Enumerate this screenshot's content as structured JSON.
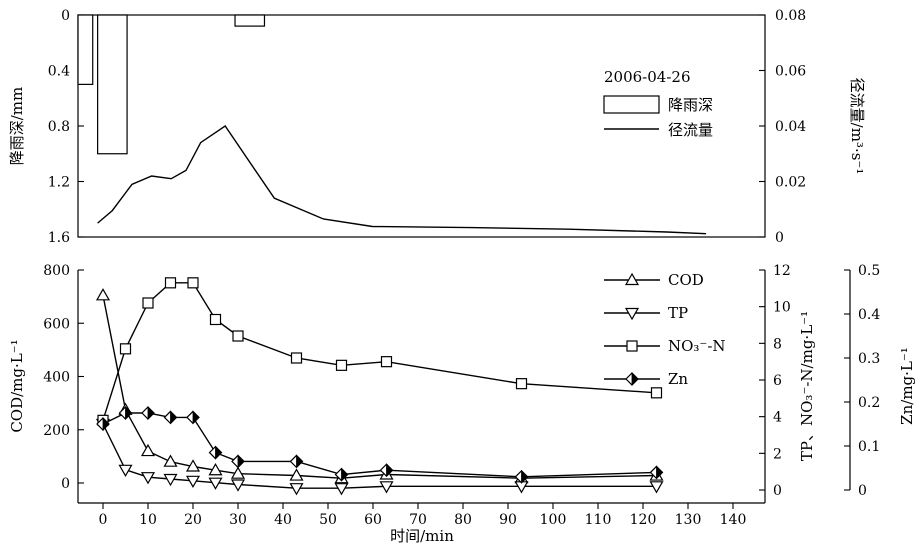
{
  "chart_data": [
    {
      "type": "bar",
      "legend_title": "2006-04-26",
      "left_axis": {
        "label": "降雨深/mm",
        "ticks": [
          "0",
          "0.4",
          "0.8",
          "1.2",
          "1.6"
        ],
        "lim": [
          0,
          1.6
        ],
        "inverted": true
      },
      "right_axis": {
        "label": "径流量/m³·s⁻¹",
        "ticks": [
          "0.08",
          "0.06",
          "0.04",
          "0.02",
          "0"
        ],
        "lim": [
          0,
          0.08
        ]
      },
      "rain": {
        "name": "降雨深",
        "bars": [
          {
            "start": 0,
            "end": 3,
            "depth": 0.5
          },
          {
            "start": 4,
            "end": 10,
            "depth": 1.0
          },
          {
            "start": 32,
            "end": 38,
            "depth": 0.08
          }
        ]
      },
      "runoff": {
        "name": "径流量",
        "x": [
          4,
          7,
          11,
          15,
          19,
          22,
          25,
          30,
          40,
          50,
          60,
          80,
          100,
          120,
          128
        ],
        "y": [
          0.005,
          0.0095,
          0.019,
          0.022,
          0.021,
          0.024,
          0.034,
          0.04,
          0.014,
          0.0065,
          0.0038,
          0.0034,
          0.0028,
          0.0018,
          0.0012
        ]
      },
      "legend_placement": "right"
    },
    {
      "type": "line",
      "xlabel": "时间/min",
      "xlim": [
        0,
        140
      ],
      "x_ticks": [
        "0",
        "10",
        "20",
        "30",
        "40",
        "50",
        "60",
        "70",
        "80",
        "90",
        "100",
        "110",
        "120",
        "130",
        "140"
      ],
      "left_axis": {
        "label": "COD/mg·L⁻¹",
        "ticks": [
          "0",
          "200",
          "400",
          "600",
          "800"
        ],
        "lim": [
          0,
          800
        ]
      },
      "right_axis": {
        "label": "TP、NO₃⁻-N/mg·L⁻¹",
        "ticks": [
          "0",
          "2",
          "4",
          "6",
          "8",
          "10",
          "12"
        ],
        "lim": [
          0,
          12
        ]
      },
      "zn_axis": {
        "label": "Zn/mg·L⁻¹",
        "ticks": [
          "0",
          "0.1",
          "0.2",
          "0.3",
          "0.4",
          "0.5"
        ],
        "lim": [
          0,
          0.5
        ]
      },
      "legend_placement": "top-right",
      "series": [
        {
          "name": "COD",
          "axis": "left",
          "marker": "triangle-up",
          "x": [
            0,
            5,
            10,
            15,
            20,
            25,
            30,
            43,
            53,
            63,
            93,
            123
          ],
          "y": [
            705,
            275,
            120,
            80,
            62,
            48,
            35,
            28,
            18,
            32,
            18,
            28
          ]
        },
        {
          "name": "TP",
          "axis": "right",
          "marker": "triangle-down",
          "x": [
            0,
            5,
            10,
            15,
            20,
            25,
            30,
            43,
            53,
            63,
            93,
            123
          ],
          "y": [
            3.6,
            1.1,
            0.7,
            0.6,
            0.5,
            0.4,
            0.3,
            0.1,
            0.1,
            0.2,
            0.2,
            0.2
          ]
        },
        {
          "name": "NO3-N",
          "axis": "right",
          "marker": "square",
          "x": [
            0,
            5,
            10,
            15,
            20,
            25,
            30,
            43,
            53,
            63,
            93,
            123
          ],
          "y": [
            3.8,
            7.7,
            10.2,
            11.3,
            11.3,
            9.3,
            8.4,
            7.2,
            6.8,
            7.0,
            5.8,
            5.3
          ]
        },
        {
          "name": "Zn",
          "axis": "zn",
          "marker": "half-diamond",
          "x": [
            0,
            5,
            10,
            15,
            20,
            25,
            30,
            43,
            53,
            63,
            93,
            123
          ],
          "y": [
            0.15,
            0.175,
            0.175,
            0.165,
            0.165,
            0.085,
            0.065,
            0.065,
            0.035,
            0.045,
            0.03,
            0.04
          ]
        }
      ],
      "legend_labels": [
        "COD",
        "TP",
        "NO₃⁻-N",
        "Zn"
      ]
    }
  ]
}
